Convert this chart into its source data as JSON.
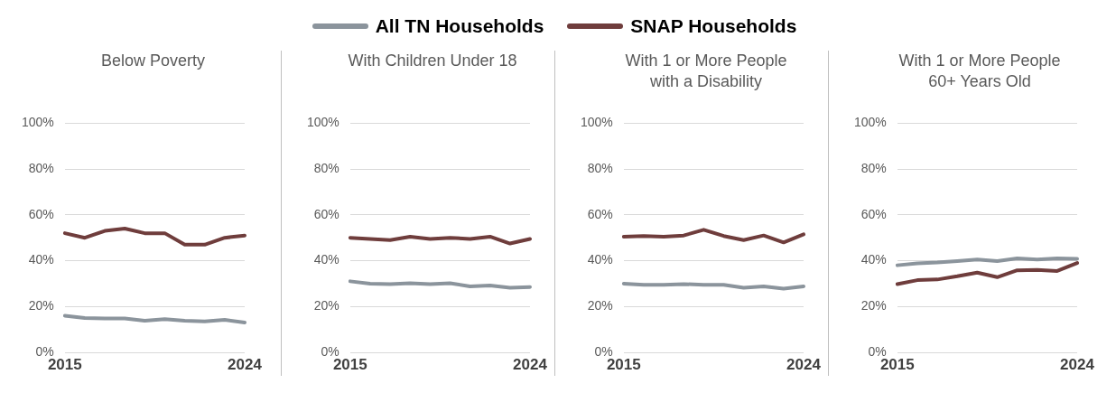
{
  "chart_data": [
    {
      "type": "line",
      "title": "Below Poverty",
      "categories": [
        "2015",
        null,
        null,
        null,
        null,
        null,
        null,
        null,
        null,
        "2024"
      ],
      "ylim": [
        0,
        100
      ],
      "yticks": [
        {
          "value": 0,
          "label": "0%"
        },
        {
          "value": 20,
          "label": "20%"
        },
        {
          "value": 40,
          "label": "40%"
        },
        {
          "value": 60,
          "label": "60%"
        },
        {
          "value": 80,
          "label": "80%"
        },
        {
          "value": 100,
          "label": "100%"
        }
      ],
      "grid": "y",
      "legend": "top",
      "marker": "none",
      "line_style": "solid",
      "series": [
        {
          "name": "All TN Households",
          "color": "#8b949c",
          "values": [
            16,
            15,
            14.8,
            14.8,
            13.8,
            14.5,
            13.8,
            13.5,
            14.2,
            13
          ]
        },
        {
          "name": "SNAP Households",
          "color": "#6f3d3c",
          "values": [
            52,
            50,
            53,
            54,
            52,
            52,
            47,
            47,
            50,
            51
          ]
        }
      ]
    },
    {
      "type": "line",
      "title": "With Children Under 18",
      "categories": [
        "2015",
        null,
        null,
        null,
        null,
        null,
        null,
        null,
        null,
        "2024"
      ],
      "ylim": [
        0,
        100
      ],
      "yticks": [
        {
          "value": 0,
          "label": "0%"
        },
        {
          "value": 20,
          "label": "20%"
        },
        {
          "value": 40,
          "label": "40%"
        },
        {
          "value": 60,
          "label": "60%"
        },
        {
          "value": 80,
          "label": "80%"
        },
        {
          "value": 100,
          "label": "100%"
        }
      ],
      "grid": "y",
      "marker": "none",
      "line_style": "solid",
      "series": [
        {
          "color": "#8b949c",
          "values": [
            31,
            30,
            29.8,
            30.2,
            29.8,
            30.2,
            28.8,
            29.2,
            28.2,
            28.5
          ]
        },
        {
          "color": "#6f3d3c",
          "values": [
            50,
            49.5,
            49,
            50.5,
            49.5,
            50,
            49.5,
            50.5,
            47.5,
            49.5
          ]
        }
      ]
    },
    {
      "type": "line",
      "title": "With 1 or More People with a Disability",
      "categories": [
        "2015",
        null,
        null,
        null,
        null,
        null,
        null,
        null,
        null,
        "2024"
      ],
      "ylim": [
        0,
        100
      ],
      "yticks": [
        {
          "value": 0,
          "label": "0%"
        },
        {
          "value": 20,
          "label": "20%"
        },
        {
          "value": 40,
          "label": "40%"
        },
        {
          "value": 60,
          "label": "60%"
        },
        {
          "value": 80,
          "label": "80%"
        },
        {
          "value": 100,
          "label": "100%"
        }
      ],
      "grid": "y",
      "marker": "none",
      "line_style": "solid",
      "series": [
        {
          "color": "#8b949c",
          "values": [
            30,
            29.5,
            29.5,
            29.8,
            29.5,
            29.5,
            28.2,
            28.8,
            27.8,
            28.8
          ]
        },
        {
          "color": "#6f3d3c",
          "values": [
            50.5,
            50.8,
            50.5,
            51,
            53.5,
            50.8,
            49,
            51,
            48,
            51.5
          ]
        }
      ]
    },
    {
      "type": "line",
      "title": "With 1 or More People 60+ Years Old",
      "categories": [
        "2015",
        null,
        null,
        null,
        null,
        null,
        null,
        null,
        null,
        "2024"
      ],
      "ylim": [
        0,
        100
      ],
      "yticks": [
        {
          "value": 0,
          "label": "0%"
        },
        {
          "value": 20,
          "label": "20%"
        },
        {
          "value": 40,
          "label": "40%"
        },
        {
          "value": 60,
          "label": "60%"
        },
        {
          "value": 80,
          "label": "80%"
        },
        {
          "value": 100,
          "label": "100%"
        }
      ],
      "grid": "y",
      "marker": "none",
      "line_style": "solid",
      "series": [
        {
          "color": "#8b949c",
          "values": [
            38,
            38.8,
            39.2,
            39.8,
            40.5,
            39.8,
            41,
            40.5,
            41,
            40.8
          ]
        },
        {
          "color": "#6f3d3c",
          "values": [
            29.8,
            31.5,
            31.8,
            33.2,
            34.8,
            32.8,
            35.8,
            36,
            35.5,
            39
          ]
        }
      ]
    }
  ]
}
